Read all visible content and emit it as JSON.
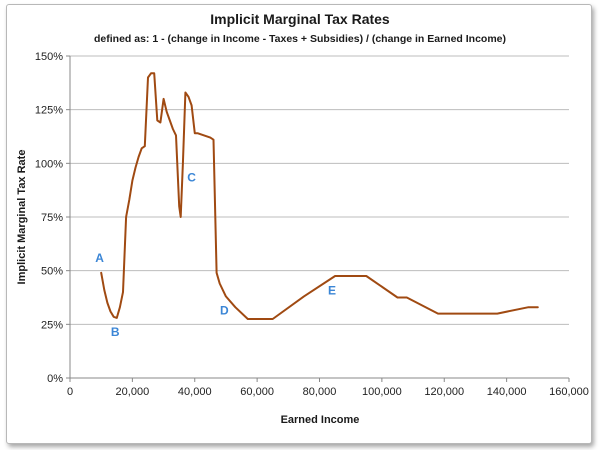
{
  "chart_data": {
    "type": "line",
    "title": "Implicit Marginal Tax Rates",
    "subtitle": "defined as:  1 - (change in Income - Taxes + Subsidies) / (change in Earned Income)",
    "xlabel": "Earned Income",
    "ylabel": "Implicit Marginal Tax Rate",
    "xlim": [
      0,
      160000
    ],
    "ylim": [
      0,
      1.5
    ],
    "x_ticks": [
      0,
      20000,
      40000,
      60000,
      80000,
      100000,
      120000,
      140000,
      160000
    ],
    "x_tick_labels": [
      "0",
      "20,000",
      "40,000",
      "60,000",
      "80,000",
      "100,000",
      "120,000",
      "140,000",
      "160,000"
    ],
    "y_ticks": [
      0,
      0.25,
      0.5,
      0.75,
      1.0,
      1.25,
      1.5
    ],
    "y_tick_labels": [
      "0%",
      "25%",
      "50%",
      "75%",
      "100%",
      "125%",
      "150%"
    ],
    "grid": "horizontal",
    "line_color": "#a04a12",
    "annotation_color": "#3b86d6",
    "series": [
      {
        "name": "Implicit Marginal Tax Rate",
        "points": [
          [
            10000,
            0.49
          ],
          [
            11000,
            0.41
          ],
          [
            12000,
            0.35
          ],
          [
            13000,
            0.31
          ],
          [
            14000,
            0.285
          ],
          [
            15000,
            0.28
          ],
          [
            16000,
            0.33
          ],
          [
            17000,
            0.4
          ],
          [
            18000,
            0.75
          ],
          [
            19000,
            0.83
          ],
          [
            20000,
            0.92
          ],
          [
            21000,
            0.98
          ],
          [
            22000,
            1.03
          ],
          [
            23000,
            1.07
          ],
          [
            24000,
            1.08
          ],
          [
            25000,
            1.4
          ],
          [
            26000,
            1.42
          ],
          [
            27000,
            1.42
          ],
          [
            28000,
            1.2
          ],
          [
            29000,
            1.19
          ],
          [
            30000,
            1.3
          ],
          [
            31000,
            1.24
          ],
          [
            32000,
            1.2
          ],
          [
            33000,
            1.16
          ],
          [
            34000,
            1.13
          ],
          [
            35000,
            0.8
          ],
          [
            35500,
            0.75
          ],
          [
            36200,
            1.0
          ],
          [
            37000,
            1.33
          ],
          [
            38000,
            1.31
          ],
          [
            39000,
            1.27
          ],
          [
            40000,
            1.14
          ],
          [
            41000,
            1.14
          ],
          [
            43000,
            1.13
          ],
          [
            45000,
            1.12
          ],
          [
            46000,
            1.11
          ],
          [
            47000,
            0.49
          ],
          [
            48000,
            0.44
          ],
          [
            50000,
            0.38
          ],
          [
            53000,
            0.33
          ],
          [
            57000,
            0.275
          ],
          [
            65000,
            0.275
          ],
          [
            75000,
            0.38
          ],
          [
            85000,
            0.475
          ],
          [
            95000,
            0.475
          ],
          [
            105000,
            0.375
          ],
          [
            108000,
            0.375
          ],
          [
            118000,
            0.3
          ],
          [
            137000,
            0.3
          ],
          [
            147000,
            0.33
          ],
          [
            150000,
            0.33
          ]
        ]
      }
    ],
    "annotations": [
      {
        "label": "A",
        "x": 9500,
        "y": 0.54
      },
      {
        "label": "B",
        "x": 14500,
        "y": 0.195
      },
      {
        "label": "C",
        "x": 39000,
        "y": 0.915
      },
      {
        "label": "D",
        "x": 49500,
        "y": 0.295
      },
      {
        "label": "E",
        "x": 84000,
        "y": 0.39
      }
    ]
  }
}
